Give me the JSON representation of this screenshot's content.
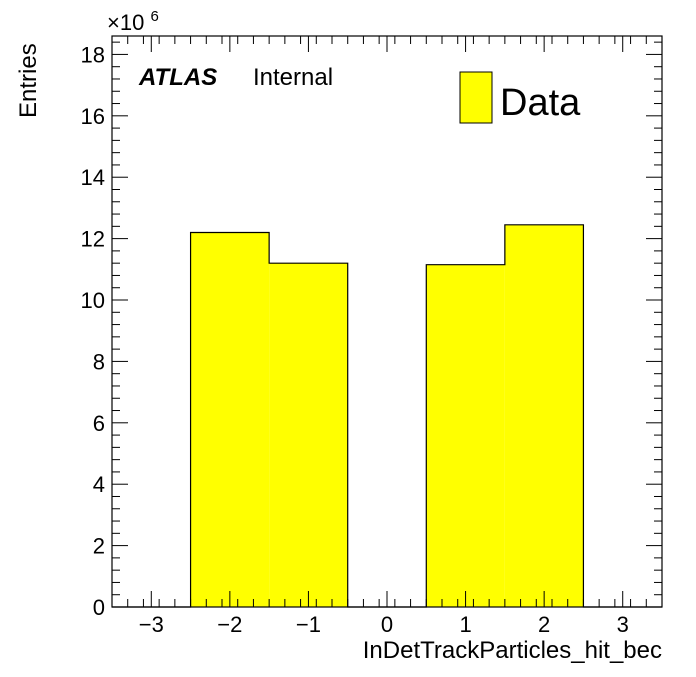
{
  "chart_data": {
    "type": "bar",
    "histogram": true,
    "bin_edges": [
      -3.5,
      -2.5,
      -1.5,
      -0.5,
      0.5,
      1.5,
      2.5,
      3.5
    ],
    "values": [
      0,
      12.2,
      11.2,
      0,
      11.15,
      12.45,
      0
    ],
    "xlabel": "InDetTrackParticles_hit_bec",
    "ylabel": "Entries",
    "y_multiplier_label": "×10",
    "y_multiplier_exponent": "6",
    "xlim": [
      -3.5,
      3.5
    ],
    "ylim": [
      0,
      18.6
    ],
    "x_ticks": [
      -3,
      -2,
      -1,
      0,
      1,
      2,
      3
    ],
    "x_tick_labels": [
      "−3",
      "−2",
      "−1",
      "0",
      "1",
      "2",
      "3"
    ],
    "y_ticks": [
      0,
      2,
      4,
      6,
      8,
      10,
      12,
      14,
      16,
      18
    ],
    "y_tick_labels": [
      "0",
      "2",
      "4",
      "6",
      "8",
      "10",
      "12",
      "14",
      "16",
      "18"
    ],
    "grid": false,
    "legend_position": "top-right",
    "series": [
      {
        "name": "Data",
        "color": "#ffff00",
        "edge_color": "#000000"
      }
    ],
    "annotation": {
      "experiment": "ATLAS",
      "status": "Internal"
    }
  }
}
